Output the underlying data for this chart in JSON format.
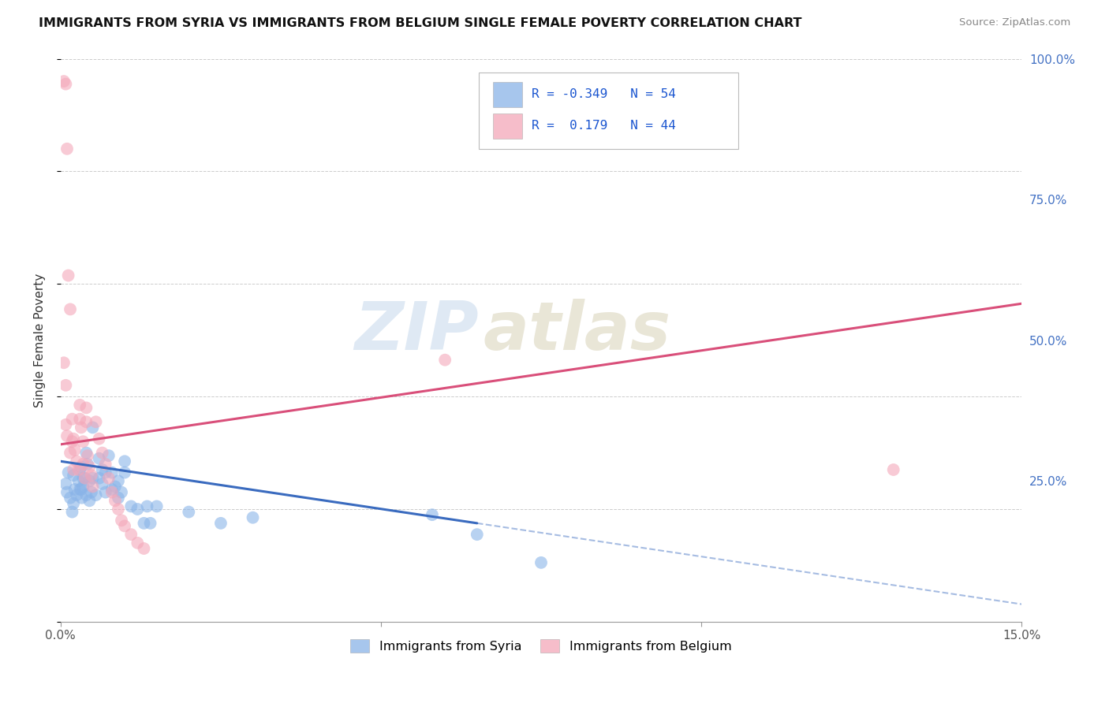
{
  "title": "IMMIGRANTS FROM SYRIA VS IMMIGRANTS FROM BELGIUM SINGLE FEMALE POVERTY CORRELATION CHART",
  "source": "Source: ZipAtlas.com",
  "ylabel": "Single Female Poverty",
  "legend_label_blue": "Immigrants from Syria",
  "legend_label_pink": "Immigrants from Belgium",
  "R_blue": -0.349,
  "N_blue": 54,
  "R_pink": 0.179,
  "N_pink": 44,
  "watermark_zip": "ZIP",
  "watermark_atlas": "atlas",
  "ylim": [
    0.0,
    1.0
  ],
  "xlim": [
    0.0,
    0.15
  ],
  "yticks": [
    0.0,
    0.25,
    0.5,
    0.75,
    1.0
  ],
  "ytick_labels": [
    "",
    "25.0%",
    "50.0%",
    "75.0%",
    "100.0%"
  ],
  "blue_color": "#8ab4e8",
  "pink_color": "#f4a7b9",
  "line_blue_color": "#3a6bbf",
  "line_pink_color": "#d94f7a",
  "blue_line_x0": 0.0,
  "blue_line_y0": 0.285,
  "blue_line_x1": 0.065,
  "blue_line_y1": 0.175,
  "pink_line_x0": 0.0,
  "pink_line_y0": 0.315,
  "pink_line_x1": 0.15,
  "pink_line_y1": 0.565,
  "blue_scatter_x": [
    0.0008,
    0.001,
    0.0012,
    0.0015,
    0.0018,
    0.002,
    0.002,
    0.0022,
    0.0025,
    0.0028,
    0.003,
    0.003,
    0.0032,
    0.0032,
    0.0033,
    0.0035,
    0.0035,
    0.0038,
    0.004,
    0.004,
    0.0042,
    0.0045,
    0.0045,
    0.0048,
    0.005,
    0.005,
    0.0055,
    0.006,
    0.006,
    0.0065,
    0.0065,
    0.007,
    0.007,
    0.0075,
    0.008,
    0.008,
    0.0085,
    0.009,
    0.009,
    0.0095,
    0.01,
    0.01,
    0.011,
    0.012,
    0.013,
    0.0135,
    0.014,
    0.015,
    0.02,
    0.025,
    0.03,
    0.058,
    0.065,
    0.075
  ],
  "blue_scatter_y": [
    0.245,
    0.23,
    0.265,
    0.22,
    0.195,
    0.21,
    0.26,
    0.235,
    0.225,
    0.25,
    0.235,
    0.27,
    0.235,
    0.275,
    0.22,
    0.255,
    0.24,
    0.255,
    0.225,
    0.3,
    0.28,
    0.215,
    0.25,
    0.23,
    0.255,
    0.345,
    0.225,
    0.29,
    0.255,
    0.27,
    0.245,
    0.265,
    0.23,
    0.295,
    0.265,
    0.235,
    0.24,
    0.22,
    0.25,
    0.23,
    0.285,
    0.265,
    0.205,
    0.2,
    0.175,
    0.205,
    0.175,
    0.205,
    0.195,
    0.175,
    0.185,
    0.19,
    0.155,
    0.105
  ],
  "pink_scatter_x": [
    0.0005,
    0.0008,
    0.001,
    0.0012,
    0.0015,
    0.0018,
    0.0018,
    0.002,
    0.0022,
    0.0025,
    0.0028,
    0.003,
    0.003,
    0.0032,
    0.0035,
    0.0035,
    0.0038,
    0.004,
    0.004,
    0.0042,
    0.0045,
    0.0048,
    0.005,
    0.0055,
    0.006,
    0.0065,
    0.007,
    0.0075,
    0.008,
    0.0085,
    0.009,
    0.0095,
    0.01,
    0.011,
    0.012,
    0.013,
    0.0008,
    0.001,
    0.0015,
    0.002,
    0.0005,
    0.0008,
    0.13,
    0.06
  ],
  "pink_scatter_y": [
    0.96,
    0.955,
    0.84,
    0.615,
    0.555,
    0.36,
    0.32,
    0.325,
    0.305,
    0.285,
    0.27,
    0.385,
    0.36,
    0.345,
    0.28,
    0.32,
    0.255,
    0.38,
    0.355,
    0.295,
    0.275,
    0.26,
    0.24,
    0.355,
    0.325,
    0.3,
    0.28,
    0.255,
    0.23,
    0.215,
    0.2,
    0.18,
    0.17,
    0.155,
    0.14,
    0.13,
    0.35,
    0.33,
    0.3,
    0.27,
    0.46,
    0.42,
    0.27,
    0.465
  ]
}
